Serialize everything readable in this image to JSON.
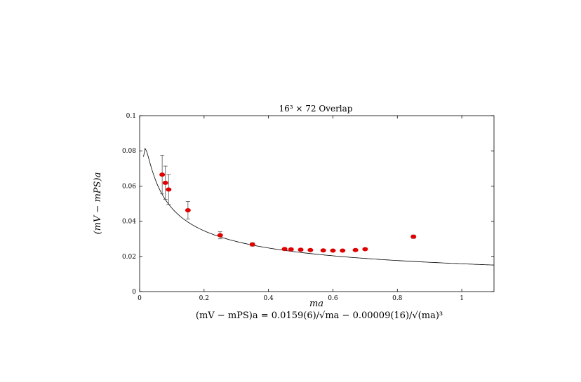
{
  "chart_data": {
    "type": "scatter",
    "title": "16³ × 72 Overlap",
    "xlabel": "ma",
    "ylabel": "(mV − mPS)a",
    "xlim": [
      0,
      1.1
    ],
    "ylim": [
      0,
      0.1
    ],
    "x_ticks": [
      0,
      0.2,
      0.4,
      0.6,
      0.8,
      1
    ],
    "x_tick_labels": [
      "0",
      "0.2",
      "0.4",
      "0.6",
      "0.8",
      "1"
    ],
    "y_ticks": [
      0,
      0.02,
      0.04,
      0.06,
      0.08,
      0.1
    ],
    "y_tick_labels": [
      "0",
      "0.02",
      "0.04",
      "0.06",
      "0.08",
      "0.1"
    ],
    "grid": false,
    "marker_color": "#e00000",
    "series": [
      {
        "x": [
          0.07,
          0.08,
          0.09,
          0.15,
          0.25,
          0.35,
          0.45,
          0.47,
          0.5,
          0.53,
          0.57,
          0.6,
          0.63,
          0.67,
          0.7,
          0.85
        ],
        "y": [
          0.0665,
          0.0618,
          0.058,
          0.0462,
          0.032,
          0.0268,
          0.0242,
          0.024,
          0.0238,
          0.0236,
          0.0234,
          0.0233,
          0.0233,
          0.0236,
          0.0241,
          0.0312
        ],
        "yerr": [
          0.011,
          0.0095,
          0.0085,
          0.005,
          0.002,
          0.001,
          0.0006,
          0.0006,
          0.0006,
          0.0006,
          0.0006,
          0.0006,
          0.0006,
          0.0006,
          0.0006,
          0.001
        ]
      }
    ],
    "fit": {
      "a": 0.0159,
      "b": -9e-05,
      "x_start": 0.012,
      "x_end": 1.1
    },
    "fit_formula": "(mV − mPS)a = 0.0159(6)/√ma − 0.00009(16)/√(ma)³"
  }
}
